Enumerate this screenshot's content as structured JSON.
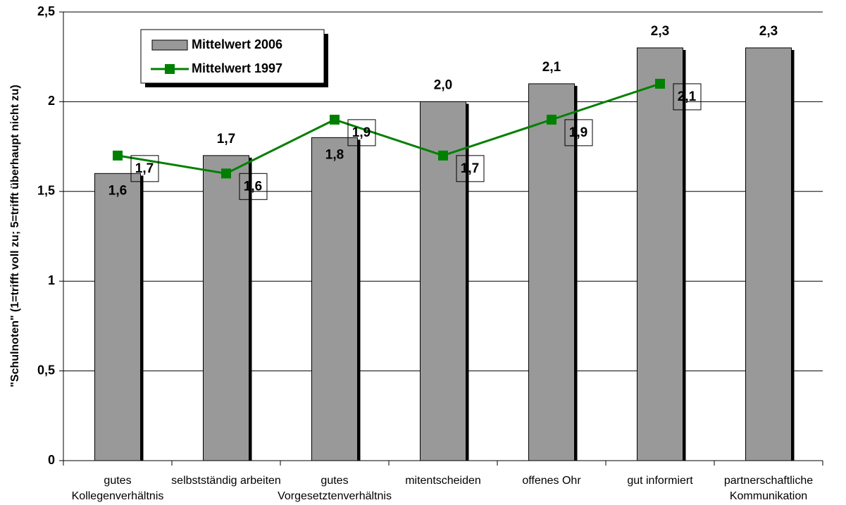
{
  "chart_data": {
    "type": "bar",
    "y_axis_label": "\"Schulnoten\" (1=trifft voll zu; 5=trifft überhaupt nicht zu)",
    "categories": [
      [
        "gutes",
        "Kollegenverhältnis"
      ],
      [
        "selbstständig arbeiten"
      ],
      [
        "gutes",
        "Vorgesetztenverhältnis"
      ],
      [
        "mitentscheiden"
      ],
      [
        "offenes Ohr"
      ],
      [
        "gut informiert"
      ],
      [
        "partnerschaftliche",
        "Kommunikation"
      ]
    ],
    "series": [
      {
        "name": "Mittelwert 2006",
        "type": "bar",
        "color": "#999999",
        "values": [
          1.6,
          1.7,
          1.8,
          2.0,
          2.1,
          2.3,
          2.3
        ],
        "value_labels": [
          "1,6",
          "1,7",
          "1,8",
          "2,0",
          "2,1",
          "2,3",
          "2,3"
        ]
      },
      {
        "name": "Mittelwert 1997",
        "type": "line",
        "color": "#008000",
        "values": [
          1.7,
          1.6,
          1.9,
          1.7,
          1.9,
          2.1,
          null
        ],
        "value_labels": [
          "1,7",
          "1,6",
          "1,9",
          "1,7",
          "1,9",
          "2,1",
          null
        ]
      }
    ],
    "ylim": [
      0,
      2.5
    ],
    "yticks": [
      0,
      {
        "value": 0.5,
        "label": "0,5"
      },
      1,
      {
        "value": 1.5,
        "label": "1,5"
      },
      2,
      {
        "value": 2.5,
        "label": "2,5"
      }
    ],
    "grid": true,
    "legend": "top-left"
  }
}
